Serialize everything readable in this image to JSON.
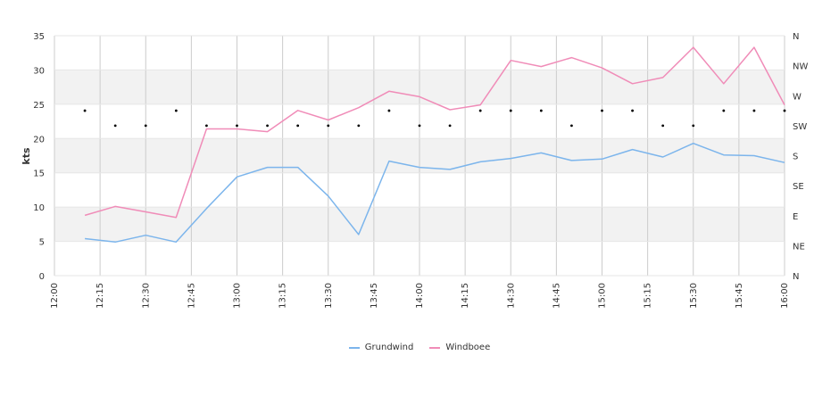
{
  "chart_data": {
    "type": "line",
    "ylabel": "kts",
    "ylim": [
      0,
      35
    ],
    "y_ticks": [
      "0",
      "5",
      "10",
      "15",
      "20",
      "25",
      "30",
      "35"
    ],
    "x_range_minutes": [
      720,
      960
    ],
    "x_ticks": [
      "12:00",
      "12:15",
      "12:30",
      "12:45",
      "13:00",
      "13:15",
      "13:30",
      "13:45",
      "14:00",
      "14:15",
      "14:30",
      "14:45",
      "15:00",
      "15:15",
      "15:30",
      "15:45",
      "16:00"
    ],
    "right_axis_labels": [
      "N",
      "NE",
      "E",
      "SE",
      "S",
      "SW",
      "W",
      "NW",
      "N"
    ],
    "x": [
      "12:10",
      "12:20",
      "12:30",
      "12:40",
      "12:50",
      "13:00",
      "13:10",
      "13:20",
      "13:30",
      "13:40",
      "13:50",
      "14:00",
      "14:10",
      "14:20",
      "14:30",
      "14:40",
      "14:50",
      "15:00",
      "15:10",
      "15:20",
      "15:30",
      "15:40",
      "15:50",
      "16:00"
    ],
    "series": [
      {
        "name": "Grundwind",
        "color": "#7cb5ec",
        "values": [
          5.4,
          4.9,
          5.9,
          4.9,
          9.8,
          14.4,
          15.8,
          15.8,
          11.6,
          6.0,
          16.7,
          15.8,
          15.5,
          16.6,
          17.1,
          17.9,
          16.8,
          17.0,
          18.4,
          17.3,
          19.3,
          17.6,
          17.5,
          16.5
        ]
      },
      {
        "name": "Windboee",
        "color": "#f08cb8",
        "values": [
          8.8,
          10.1,
          9.3,
          8.5,
          21.4,
          21.4,
          21.0,
          24.1,
          22.7,
          24.5,
          26.9,
          26.1,
          24.2,
          24.9,
          31.4,
          30.5,
          31.8,
          30.3,
          28.0,
          28.9,
          33.3,
          28.0,
          33.3,
          24.9
        ]
      }
    ],
    "direction_markers": [
      "SW-W",
      "SW",
      "SW",
      "SW-W",
      "SW",
      "SW",
      "SW",
      "SW",
      "SW",
      "SW",
      "SW-W",
      "SW",
      "SW",
      "SW-W",
      "SW-W",
      "SW-W",
      "SW",
      "SW-W",
      "SW-W",
      "SW",
      "SW",
      "SW-W",
      "SW-W",
      "SW-W"
    ],
    "direction_marker_color": "#000000",
    "grid": true,
    "band_color": "#f2f2f2",
    "grid_color": "#cccccc",
    "legend_position": "bottom-center"
  }
}
